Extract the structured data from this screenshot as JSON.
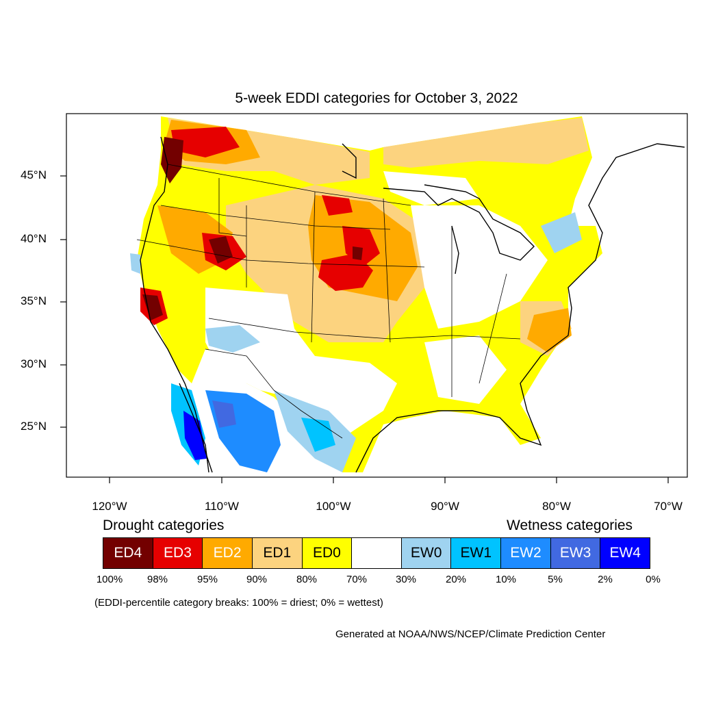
{
  "title": "5-week EDDI categories for October 3, 2022",
  "lat_labels": [
    "45°N",
    "40°N",
    "35°N",
    "30°N",
    "25°N"
  ],
  "lon_labels": [
    "120°W",
    "110°W",
    "100°W",
    "90°W",
    "80°W",
    "70°W"
  ],
  "legend": {
    "drought_heading": "Drought categories",
    "wetness_heading": "Wetness categories",
    "categories": [
      {
        "label": "ED4",
        "color": "#730000",
        "text_color": "#ffffff"
      },
      {
        "label": "ED3",
        "color": "#e60000",
        "text_color": "#ffffff"
      },
      {
        "label": "ED2",
        "color": "#ffaa00",
        "text_color": "#ffffff"
      },
      {
        "label": "ED1",
        "color": "#fcd37f",
        "text_color": "#000000"
      },
      {
        "label": "ED0",
        "color": "#ffff00",
        "text_color": "#000000"
      },
      {
        "label": "",
        "color": "#ffffff",
        "text_color": "#000000"
      },
      {
        "label": "EW0",
        "color": "#9fd3f0",
        "text_color": "#000000"
      },
      {
        "label": "EW1",
        "color": "#00c3ff",
        "text_color": "#000000"
      },
      {
        "label": "EW2",
        "color": "#1e8cff",
        "text_color": "#ffffff"
      },
      {
        "label": "EW3",
        "color": "#4169e1",
        "text_color": "#ffffff"
      },
      {
        "label": "EW4",
        "color": "#0000ff",
        "text_color": "#ffffff"
      }
    ],
    "breaks": [
      "100%",
      "98%",
      "95%",
      "90%",
      "80%",
      "70%",
      "30%",
      "20%",
      "10%",
      "5%",
      "2%",
      "0%"
    ]
  },
  "note": "(EDDI-percentile category breaks: 100% = driest; 0% = wettest)",
  "credit": "Generated at NOAA/NWS/NCEP/Climate Prediction Center"
}
